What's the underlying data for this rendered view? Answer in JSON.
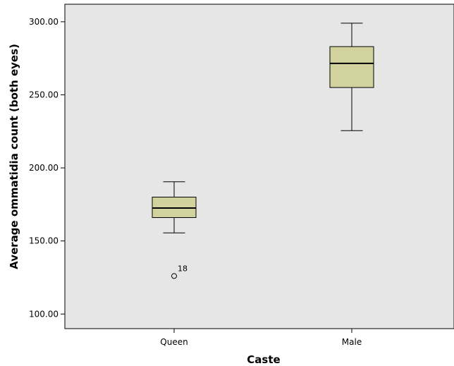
{
  "chart_data": {
    "type": "box",
    "xlabel": "Caste",
    "ylabel": "Average ommatidia count (both eyes)",
    "ylim": [
      90,
      312
    ],
    "yticks": [
      {
        "value": 100,
        "label": "100.00"
      },
      {
        "value": 150,
        "label": "150.00"
      },
      {
        "value": 200,
        "label": "200.00"
      },
      {
        "value": 250,
        "label": "250.00"
      },
      {
        "value": 300,
        "label": "300.00"
      }
    ],
    "categories": [
      "Queen",
      "Male"
    ],
    "boxes": [
      {
        "category": "Queen",
        "whisker_low": 155.5,
        "q1": 166,
        "median": 172.5,
        "q3": 180,
        "whisker_high": 190.5,
        "outliers": [
          {
            "value": 126,
            "label": "18"
          }
        ]
      },
      {
        "category": "Male",
        "whisker_low": 225.5,
        "q1": 255,
        "median": 271.5,
        "q3": 283,
        "whisker_high": 299,
        "outliers": []
      }
    ],
    "grid": false,
    "colors": {
      "plot_background": "#e6e6e6",
      "box_fill": "#d2d29e",
      "line": "#000000"
    }
  }
}
